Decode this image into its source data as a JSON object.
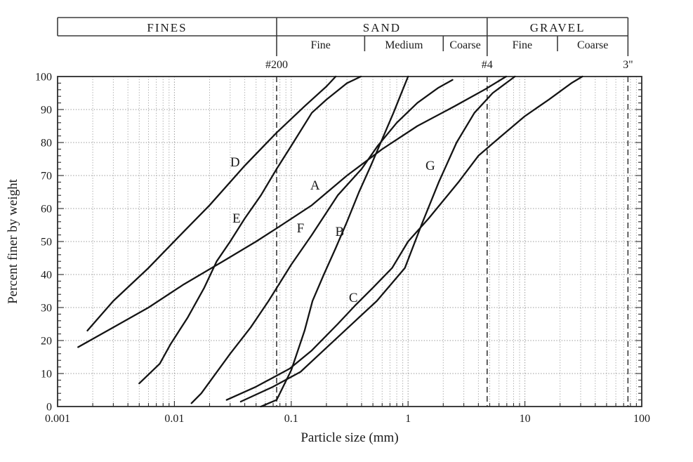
{
  "colors": {
    "background": "#ffffff",
    "curve": "#141414",
    "grid_minor": "#a8a8a8",
    "grid_major": "#8f8f8f",
    "border": "#2b2b2b",
    "header_line": "#3c3c3c",
    "dashed_line": "#3a3a3a",
    "text": "#1a1a1a"
  },
  "chart_data": {
    "type": "line",
    "title": "",
    "xlabel": "Particle size (mm)",
    "ylabel": "Percent finer by weight",
    "x_scale": "log",
    "xlim": [
      0.001,
      100
    ],
    "ylim": [
      0,
      100
    ],
    "grid": true,
    "x_ticks": [
      0.001,
      0.01,
      0.1,
      1,
      10,
      100
    ],
    "x_tick_labels": [
      "0.001",
      "0.01",
      "0.1",
      "1",
      "10",
      "100"
    ],
    "y_ticks": [
      0,
      10,
      20,
      30,
      40,
      50,
      60,
      70,
      80,
      90,
      100
    ],
    "y_tick_labels": [
      "0",
      "10",
      "20",
      "30",
      "40",
      "50",
      "60",
      "70",
      "80",
      "90",
      "100"
    ],
    "sieve_lines": [
      {
        "label": "#200",
        "size_mm": 0.075
      },
      {
        "label": "#4",
        "size_mm": 4.75
      },
      {
        "label": "3\"",
        "size_mm": 76.2
      }
    ],
    "classification_bands": {
      "row1": [
        {
          "label": "FINES",
          "from_mm": 0.001,
          "to_mm": 0.075
        },
        {
          "label": "SAND",
          "from_mm": 0.075,
          "to_mm": 4.75
        },
        {
          "label": "GRAVEL",
          "from_mm": 4.75,
          "to_mm": 76.2
        }
      ],
      "row2": [
        {
          "label": "Fine",
          "from_mm": 0.075,
          "to_mm": 0.425
        },
        {
          "label": "Medium",
          "from_mm": 0.425,
          "to_mm": 2.0
        },
        {
          "label": "Coarse",
          "from_mm": 2.0,
          "to_mm": 4.75
        },
        {
          "label": "Fine",
          "from_mm": 4.75,
          "to_mm": 19.0
        },
        {
          "label": "Coarse",
          "from_mm": 19.0,
          "to_mm": 76.2
        }
      ]
    },
    "series": [
      {
        "name": "A",
        "label_at": [
          0.16,
          67
        ],
        "points": [
          [
            0.0015,
            18
          ],
          [
            0.003,
            24
          ],
          [
            0.006,
            30
          ],
          [
            0.012,
            37
          ],
          [
            0.026,
            44
          ],
          [
            0.05,
            50
          ],
          [
            0.075,
            54
          ],
          [
            0.15,
            61
          ],
          [
            0.3,
            70
          ],
          [
            0.6,
            78
          ],
          [
            1.2,
            85
          ],
          [
            2.5,
            91
          ],
          [
            4.5,
            96
          ],
          [
            6.9,
            100
          ]
        ]
      },
      {
        "name": "B",
        "label_at": [
          0.26,
          53
        ],
        "points": [
          [
            0.055,
            0
          ],
          [
            0.075,
            2
          ],
          [
            0.1,
            11
          ],
          [
            0.13,
            23
          ],
          [
            0.152,
            32
          ],
          [
            0.19,
            40
          ],
          [
            0.24,
            48
          ],
          [
            0.3,
            56
          ],
          [
            0.38,
            65
          ],
          [
            0.48,
            73
          ],
          [
            0.6,
            81
          ],
          [
            0.75,
            89
          ],
          [
            0.9,
            96
          ],
          [
            1.0,
            100
          ]
        ]
      },
      {
        "name": "C",
        "label_at": [
          0.34,
          33
        ],
        "points": [
          [
            0.028,
            2
          ],
          [
            0.05,
            6
          ],
          [
            0.097,
            11.5
          ],
          [
            0.15,
            17
          ],
          [
            0.25,
            25
          ],
          [
            0.35,
            30.5
          ],
          [
            0.5,
            36
          ],
          [
            0.73,
            42
          ],
          [
            1.0,
            50
          ],
          [
            1.5,
            57
          ],
          [
            2.7,
            68
          ],
          [
            4.0,
            76
          ],
          [
            6.3,
            82
          ],
          [
            10,
            88
          ],
          [
            16,
            93
          ],
          [
            25,
            98
          ],
          [
            31,
            100
          ]
        ]
      },
      {
        "name": "D",
        "label_at": [
          0.033,
          74
        ],
        "points": [
          [
            0.0018,
            23
          ],
          [
            0.003,
            32
          ],
          [
            0.006,
            42
          ],
          [
            0.012,
            53
          ],
          [
            0.02,
            61
          ],
          [
            0.04,
            73
          ],
          [
            0.075,
            83
          ],
          [
            0.13,
            91
          ],
          [
            0.2,
            97
          ],
          [
            0.24,
            100
          ]
        ]
      },
      {
        "name": "E",
        "label_at": [
          0.034,
          57
        ],
        "points": [
          [
            0.005,
            7
          ],
          [
            0.0075,
            13
          ],
          [
            0.0093,
            19
          ],
          [
            0.013,
            27
          ],
          [
            0.018,
            36
          ],
          [
            0.023,
            44
          ],
          [
            0.03,
            50
          ],
          [
            0.04,
            57
          ],
          [
            0.055,
            64
          ],
          [
            0.075,
            72
          ],
          [
            0.1,
            79
          ],
          [
            0.15,
            89
          ],
          [
            0.2,
            93
          ],
          [
            0.3,
            98
          ],
          [
            0.394,
            100
          ]
        ]
      },
      {
        "name": "F",
        "label_at": [
          0.12,
          54
        ],
        "points": [
          [
            0.014,
            1
          ],
          [
            0.017,
            4
          ],
          [
            0.03,
            16
          ],
          [
            0.045,
            24
          ],
          [
            0.064,
            32
          ],
          [
            0.1,
            43
          ],
          [
            0.15,
            52
          ],
          [
            0.25,
            64
          ],
          [
            0.4,
            72
          ],
          [
            0.55,
            79
          ],
          [
            0.8,
            86
          ],
          [
            1.2,
            92
          ],
          [
            1.8,
            96.5
          ],
          [
            2.4,
            99
          ]
        ]
      },
      {
        "name": "G",
        "label_at": [
          1.55,
          73
        ],
        "points": [
          [
            0.037,
            1.5
          ],
          [
            0.07,
            6
          ],
          [
            0.12,
            10.5
          ],
          [
            0.25,
            21
          ],
          [
            0.54,
            32
          ],
          [
            0.94,
            42
          ],
          [
            1.3,
            55
          ],
          [
            1.83,
            68
          ],
          [
            2.6,
            80
          ],
          [
            3.7,
            89
          ],
          [
            5.3,
            95
          ],
          [
            8.2,
            100
          ]
        ]
      }
    ]
  }
}
